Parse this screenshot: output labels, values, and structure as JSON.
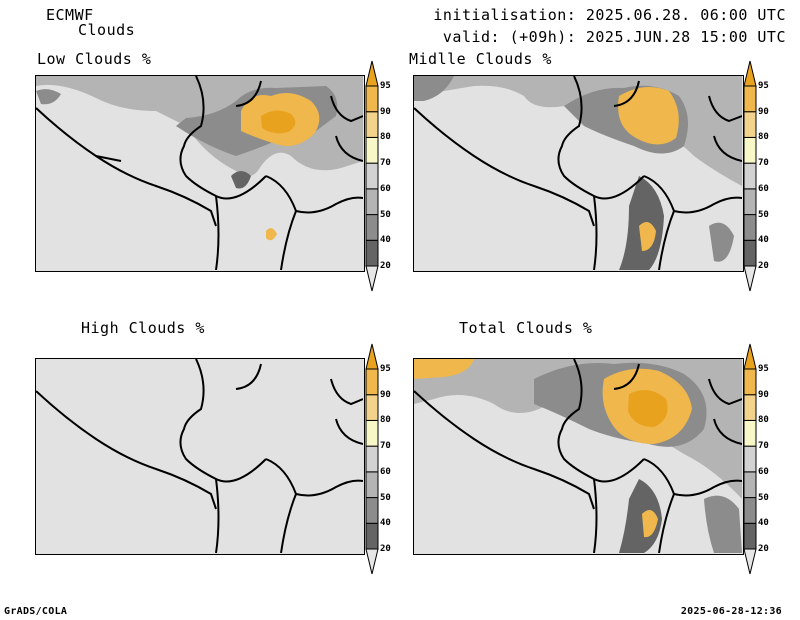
{
  "header": {
    "model": "ECMWF",
    "product": "Clouds",
    "init": "initialisation: 2025.06.28. 06:00 UTC",
    "valid": "valid: (+09h): 2025.JUN.28 15:00 UTC"
  },
  "footer": {
    "left": "GrADS/COLA",
    "right": "2025-06-28-12:36"
  },
  "panels": [
    {
      "title": "Low Clouds %"
    },
    {
      "title": "Midlle Clouds %"
    },
    {
      "title": "High Clouds %"
    },
    {
      "title": "Total Clouds %"
    }
  ],
  "legend": {
    "labels": [
      "20",
      "40",
      "50",
      "60",
      "70",
      "80",
      "90",
      "95"
    ],
    "colors": [
      "#e6e6e6",
      "#646464",
      "#8c8c8c",
      "#b4b4b4",
      "#d2d2d2",
      "#f7f7c8",
      "#f3d28c",
      "#efb74c",
      "#e8a21e"
    ]
  }
}
